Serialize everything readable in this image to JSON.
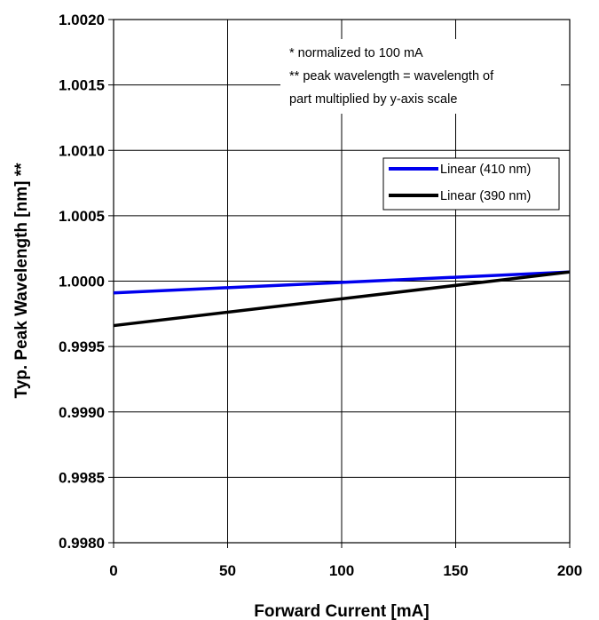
{
  "chart_data": {
    "type": "line",
    "title": "",
    "xlabel": "Forward Current [mA]",
    "ylabel": "Typ. Peak Wavelength [nm] **",
    "xlim": [
      0,
      200
    ],
    "ylim": [
      0.998,
      1.002
    ],
    "x_ticks": [
      "0",
      "50",
      "100",
      "150",
      "200"
    ],
    "y_ticks": [
      "0.9980",
      "0.9985",
      "0.9990",
      "0.9995",
      "1.0000",
      "1.0005",
      "1.0010",
      "1.0015",
      "1.0020"
    ],
    "grid": true,
    "legend_position": "right",
    "series": [
      {
        "name": "Linear (410 nm)",
        "color": "#0000ee",
        "x": [
          0,
          200
        ],
        "y": [
          0.99991,
          1.00007
        ]
      },
      {
        "name": "Linear (390 nm)",
        "color": "#000000",
        "x": [
          0,
          200
        ],
        "y": [
          0.99966,
          1.00007
        ]
      }
    ],
    "annotations": [
      "* normalized to 100 mA",
      "** peak wavelength = wavelength of",
      "part multiplied by y-axis scale"
    ]
  }
}
